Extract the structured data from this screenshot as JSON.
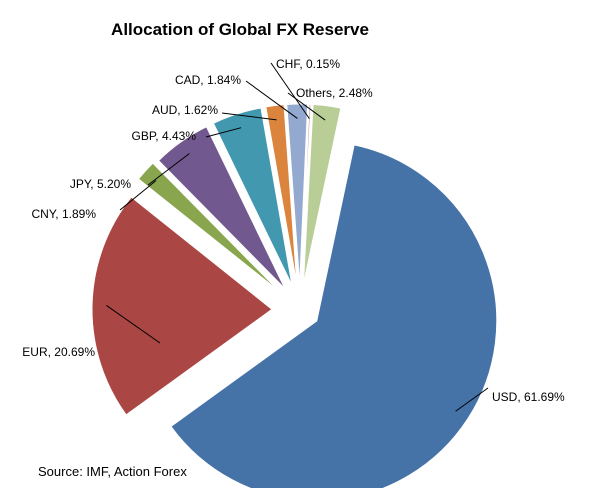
{
  "chart_data": {
    "type": "pie",
    "title": "Allocation of Global FX Reserve",
    "slices": [
      {
        "label": "USD",
        "value": 61.69,
        "color": "#4572A7",
        "label_text": "USD, 61.69%"
      },
      {
        "label": "EUR",
        "value": 20.69,
        "color": "#AA4643",
        "label_text": "EUR, 20.69%"
      },
      {
        "label": "CNY",
        "value": 1.89,
        "color": "#89A54E",
        "label_text": "CNY, 1.89%"
      },
      {
        "label": "JPY",
        "value": 5.2,
        "color": "#71588F",
        "label_text": "JPY, 5.20%"
      },
      {
        "label": "GBP",
        "value": 4.43,
        "color": "#4198AF",
        "label_text": "GBP, 4.43%"
      },
      {
        "label": "AUD",
        "value": 1.62,
        "color": "#DB843D",
        "label_text": "AUD, 1.62%"
      },
      {
        "label": "CAD",
        "value": 1.84,
        "color": "#93A9CF",
        "label_text": "CAD, 1.84%"
      },
      {
        "label": "CHF",
        "value": 0.15,
        "color": "#D19392",
        "label_text": "CHF, 0.15%"
      },
      {
        "label": "Others",
        "value": 2.48,
        "color": "#B9CD96",
        "label_text": "Others, 2.48%"
      }
    ],
    "legend": "none",
    "data_labels": "outside with leader lines"
  },
  "source": "Source: IMF, Action Forex"
}
